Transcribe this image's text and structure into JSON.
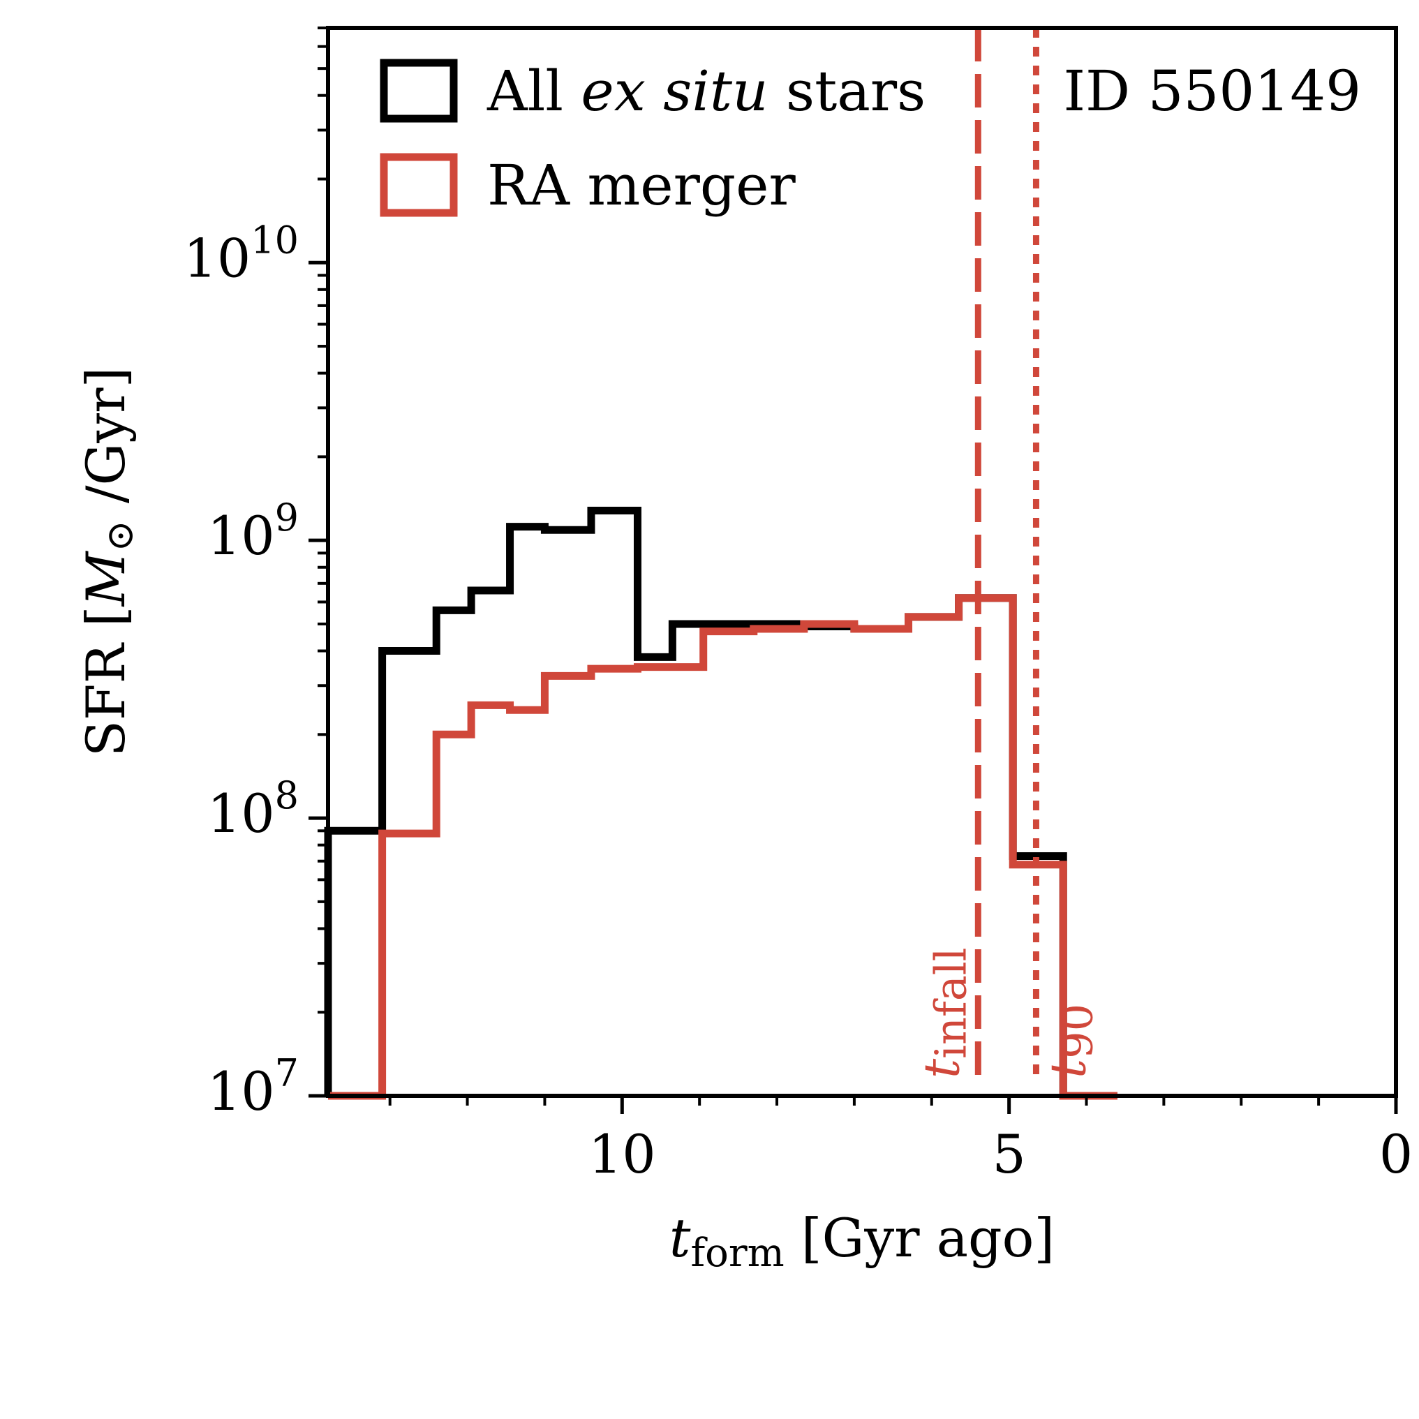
{
  "chart_data": {
    "type": "line",
    "step": true,
    "id_label": "ID 550149",
    "xlabel": {
      "main": "t",
      "sub": "form",
      "rest": " [Gyr ago]"
    },
    "ylabel": {
      "prefix": "SFR [",
      "sym": "M",
      "sun": "⊙",
      "suffix": " /Gyr]"
    },
    "xlim": [
      13.8,
      0
    ],
    "ylim": [
      10000000,
      70000000000
    ],
    "yscale": "log",
    "x_ticks": [
      {
        "value": 10,
        "label": "10"
      },
      {
        "value": 5,
        "label": "5"
      },
      {
        "value": 0,
        "label": "0"
      }
    ],
    "x_minor_ticks": [
      13,
      12,
      11,
      9,
      8,
      7,
      6,
      4,
      3,
      2,
      1
    ],
    "y_ticks": [
      {
        "value": 10000000,
        "base": "10",
        "exp": "7"
      },
      {
        "value": 100000000,
        "base": "10",
        "exp": "8"
      },
      {
        "value": 1000000000,
        "base": "10",
        "exp": "9"
      },
      {
        "value": 10000000000,
        "base": "10",
        "exp": "10"
      }
    ],
    "legend_position": "top-left",
    "legend": [
      {
        "parts": [
          {
            "text": "All ",
            "italic": false
          },
          {
            "text": "ex situ",
            "italic": true
          },
          {
            "text": " stars",
            "italic": false
          }
        ],
        "color": "#000000"
      },
      {
        "parts": [
          {
            "text": "RA merger",
            "italic": false
          }
        ],
        "color": "#d0473a"
      }
    ],
    "series": [
      {
        "color": "#000000",
        "edges": [
          13.8,
          13.1,
          12.4,
          11.95,
          11.45,
          11.0,
          10.4,
          9.8,
          9.35,
          8.95,
          8.3,
          7.65,
          7.0,
          6.3,
          5.65,
          4.95,
          4.3,
          3.6
        ],
        "values": [
          90000000,
          400000000,
          560000000,
          660000000,
          1120000000,
          1090000000,
          1280000000,
          380000000,
          500000000,
          500000000,
          500000000,
          490000000,
          480000000,
          530000000,
          620000000,
          73000000,
          10000000
        ]
      },
      {
        "color": "#d0473a",
        "edges": [
          13.8,
          13.1,
          12.4,
          11.95,
          11.45,
          11.0,
          10.4,
          9.8,
          9.35,
          8.95,
          8.3,
          7.65,
          7.0,
          6.3,
          5.65,
          4.95,
          4.3,
          3.6
        ],
        "values": [
          10000000,
          88000000,
          200000000,
          255000000,
          245000000,
          325000000,
          345000000,
          350000000,
          350000000,
          470000000,
          480000000,
          500000000,
          480000000,
          530000000,
          620000000,
          68000000,
          10000000
        ]
      }
    ],
    "vlines": [
      {
        "x": 5.4,
        "style": "dashed",
        "color": "#d0473a",
        "label_main": "t",
        "label_sub": "infall"
      },
      {
        "x": 4.65,
        "style": "dotted",
        "color": "#d0473a",
        "label_main": "t",
        "label_sub": "90"
      }
    ]
  }
}
